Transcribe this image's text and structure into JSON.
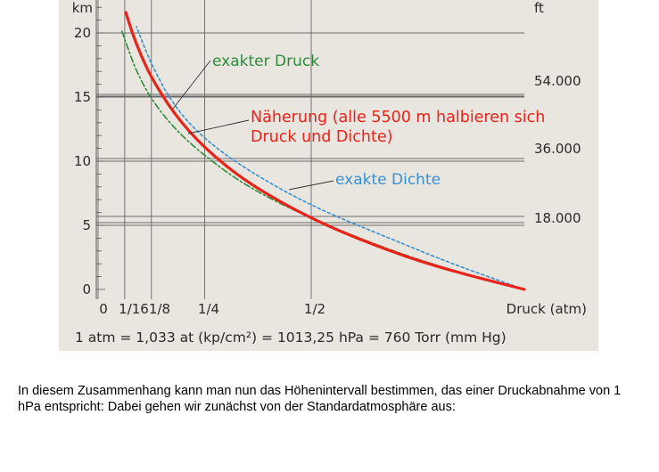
{
  "chart_data": {
    "type": "line",
    "y_unit_left": "km",
    "y_unit_right": "ft",
    "y_ticks_left": [
      "0",
      "5",
      "10",
      "15",
      "20"
    ],
    "y_ticks_right": [
      "18.000",
      "36.000",
      "54.000"
    ],
    "x_ticks": [
      "0",
      "1/16",
      "1/8",
      "1/4",
      "1/2"
    ],
    "xlabel": "Druck (atm)",
    "footnote": "1 atm = 1,033 at (kp/cm²) = 1013,25 hPa = 760 Torr (mm Hg)",
    "xlim": [
      0,
      1
    ],
    "ylim": [
      0,
      22
    ],
    "grid": true,
    "series": [
      {
        "name": "exakter Druck",
        "color": "#2e8b3a",
        "style": "dash-dot",
        "x": [
          1.0,
          0.83,
          0.69,
          0.5,
          0.35,
          0.25,
          0.18,
          0.125,
          0.09,
          0.07,
          0.055
        ],
        "y": [
          0,
          1.5,
          3,
          5.5,
          8,
          10.4,
          12.5,
          14.8,
          17,
          18.8,
          20.2
        ]
      },
      {
        "name": "exakte Dichte",
        "color": "#3a8fd0",
        "style": "dotted",
        "x": [
          1.0,
          0.83,
          0.69,
          0.5,
          0.35,
          0.25,
          0.18,
          0.125,
          0.09
        ],
        "y": [
          0,
          2,
          3.9,
          6.5,
          9.3,
          11.7,
          14.2,
          17.5,
          20.5
        ]
      },
      {
        "name": "Näherung (alle 5500 m halbieren sich Druck und Dichte)",
        "color": "#e8231a",
        "style": "solid",
        "x": [
          1.0,
          0.8,
          0.65,
          0.5,
          0.35,
          0.25,
          0.18,
          0.125,
          0.1,
          0.08,
          0.065
        ],
        "y": [
          0,
          1.7,
          3.4,
          5.5,
          8.3,
          11,
          13.6,
          16.5,
          18.3,
          20.0,
          21.6
        ]
      }
    ],
    "annotations": [
      {
        "text": "exakter Druck",
        "color": "#2e8b3a"
      },
      {
        "text": "Näherung (alle 5500 m halbieren sich",
        "text2": "Druck und Dichte)",
        "color": "#e8231a"
      },
      {
        "text": "exakte Dichte",
        "color": "#3a8fd0"
      }
    ]
  },
  "caption": "In diesem Zusammenhang kann man nun das Höhenintervall bestimmen, das einer Druckabnahme von 1 hPa entspricht: Dabei gehen wir zunächst von der Standardatmosphäre aus:"
}
